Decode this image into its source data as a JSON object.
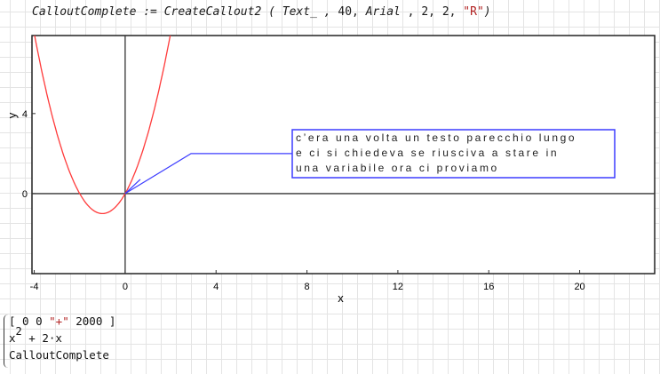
{
  "definition": {
    "lhs": "CalloutComplete",
    "op": " := ",
    "func": "CreateCallout2",
    "args_prefix": " ( Text_ ,",
    "arg_num": " 40,",
    "arg_font": " Arial",
    "arg_nums": " , 2, 2,",
    "arg_str": " \"R\"",
    "close": ")"
  },
  "plot": {
    "xlabel": "x",
    "ylabel": "y",
    "xlim": [
      -4.1,
      23.3
    ],
    "ylim": [
      -4,
      7.9
    ],
    "xticks": [
      "-4",
      "0",
      "4",
      "8",
      "12",
      "16",
      "20"
    ],
    "yticks": [
      "0",
      "4"
    ],
    "curve_color": "#ff3b3b",
    "callout_color": "#3c3cff",
    "callout_anchor": [
      0,
      0
    ],
    "callout_elbow": [
      2.9,
      2
    ],
    "callout_lines": [
      "c’era una volta un testo parecchio lungo",
      "e ci si chiedeva se riusciva a stare in",
      "una variabile ora ci proviamo"
    ]
  },
  "program": {
    "row1_open": "[ 0 0 ",
    "row1_str": "\"+\"",
    "row1_close": " 2000 ]",
    "row2_base": "x",
    "row2_exp": "2",
    "row2_rest": " + 2·x",
    "row3": "CalloutComplete"
  }
}
